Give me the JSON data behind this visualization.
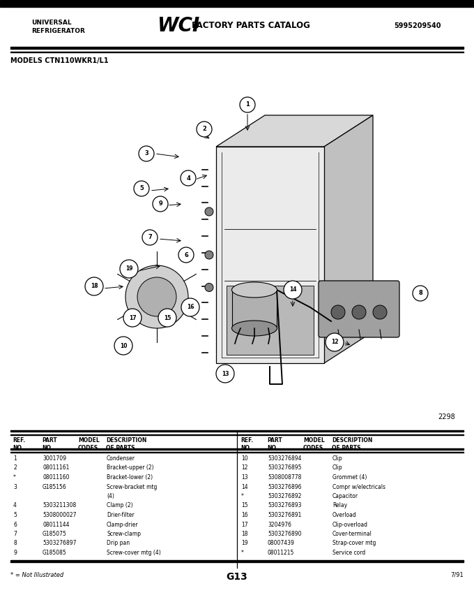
{
  "page_bg": "#ffffff",
  "header": {
    "left_line1": "UNIVERSAL",
    "left_line2": "REFRIGERATOR",
    "center_text": "FACTORY PARTS CATALOG",
    "right_text": "5995209540"
  },
  "model_text": "MODELS CTN110WKR1/L1",
  "diagram_number": "2298",
  "parts_left": [
    [
      "1",
      "3001709",
      "",
      "Condenser"
    ],
    [
      "2",
      "08011161",
      "",
      "Bracket-upper (2)"
    ],
    [
      "*",
      "08011160",
      "",
      "Bracket-lower (2)"
    ],
    [
      "3",
      "G185156",
      "",
      "Screw-bracket mtg"
    ],
    [
      "",
      "",
      "",
      "(4)"
    ],
    [
      "4",
      "5303211308",
      "",
      "Clamp (2)"
    ],
    [
      "5",
      "5308000027",
      "",
      "Drier-filter"
    ],
    [
      "6",
      "08011144",
      "",
      "Clamp-drier"
    ],
    [
      "7",
      "G185075",
      "",
      "Screw-clamp"
    ],
    [
      "8",
      "5303276897",
      "",
      "Drip pan"
    ],
    [
      "9",
      "G185085",
      "",
      "Screw-cover mtg (4)"
    ]
  ],
  "parts_right": [
    [
      "10",
      "5303276894",
      "",
      "Clip"
    ],
    [
      "12",
      "5303276895",
      "",
      "Clip"
    ],
    [
      "13",
      "5308008778",
      "",
      "Grommet (4)"
    ],
    [
      "14",
      "5303276896",
      "",
      "Compr w/electricals"
    ],
    [
      "*",
      "5303276892",
      "",
      "Capacitor"
    ],
    [
      "15",
      "5303276893",
      "",
      "Relay"
    ],
    [
      "16",
      "5303276891",
      "",
      "Overload"
    ],
    [
      "17",
      "3204976",
      "",
      "Clip-overload"
    ],
    [
      "18",
      "5303276890",
      "",
      "Cover-terminal"
    ],
    [
      "19",
      "08007439",
      "",
      "Strap-cover mtg"
    ],
    [
      "*",
      "08011215",
      "",
      "Service cord"
    ]
  ],
  "footer_left": "* = Not Illustrated",
  "footer_center": "G13",
  "footer_right": "7/91"
}
